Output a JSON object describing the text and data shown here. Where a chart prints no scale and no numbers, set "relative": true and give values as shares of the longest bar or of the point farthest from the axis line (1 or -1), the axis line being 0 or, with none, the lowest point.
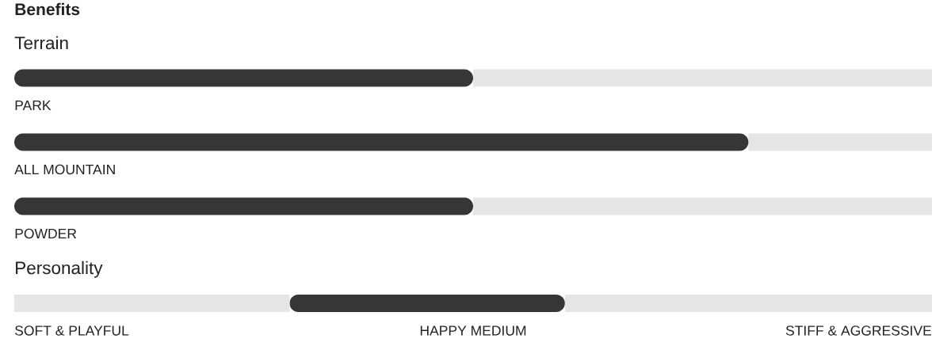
{
  "chart_data": [
    {
      "type": "other",
      "title": "Benefits"
    },
    {
      "type": "bar",
      "orientation": "horizontal",
      "stacked": true,
      "relative": true,
      "title": "Terrain",
      "categories": [
        "PARK",
        "ALL MOUNTAIN",
        "POWDER"
      ],
      "series": [
        {
          "color": "#363636",
          "values": [
            0.5,
            0.8,
            0.5
          ]
        },
        {
          "color": "#e5e5e5",
          "values": [
            0.5,
            0.2,
            0.5
          ]
        }
      ]
    },
    {
      "type": "bar",
      "orientation": "horizontal",
      "stacked": true,
      "relative": true,
      "title": "Personality",
      "categories": [
        null
      ],
      "series": [
        {
          "color": "#e5e5e5",
          "values": [
            0.3
          ]
        },
        {
          "color": "#363636",
          "values": [
            0.3
          ]
        },
        {
          "color": "#e5e5e5",
          "values": [
            0.4
          ]
        }
      ],
      "annotations": [
        "SOFT & PLAYFUL",
        "HAPPY MEDIUM",
        "STIFF & AGGRESSIVE"
      ]
    }
  ]
}
